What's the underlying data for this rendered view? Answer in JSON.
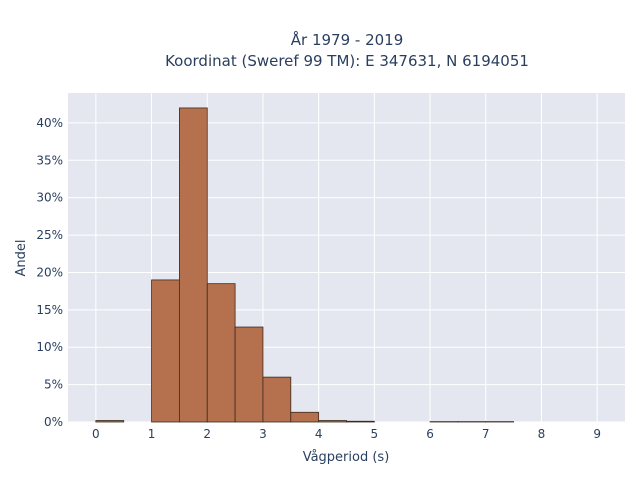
{
  "chart_data": {
    "type": "bar",
    "title_lines": [
      "År 1979 - 2019",
      "Koordinat (Sweref 99 TM): E 347631, N 6194051"
    ],
    "xlabel": "Vågperiod (s)",
    "ylabel": "Andel",
    "bin_width": 0.5,
    "bins": [
      {
        "x0": 0.0,
        "value": 0.002
      },
      {
        "x0": 0.5,
        "value": 0.0
      },
      {
        "x0": 1.0,
        "value": 0.19
      },
      {
        "x0": 1.5,
        "value": 0.42
      },
      {
        "x0": 2.0,
        "value": 0.185
      },
      {
        "x0": 2.5,
        "value": 0.127
      },
      {
        "x0": 3.0,
        "value": 0.06
      },
      {
        "x0": 3.5,
        "value": 0.013
      },
      {
        "x0": 4.0,
        "value": 0.002
      },
      {
        "x0": 4.5,
        "value": 0.001
      },
      {
        "x0": 6.0,
        "value": 0.0005
      },
      {
        "x0": 6.5,
        "value": 0.0005
      },
      {
        "x0": 7.0,
        "value": 0.0005
      }
    ],
    "xlim": [
      -0.5,
      9.5
    ],
    "ylim": [
      0,
      0.44
    ],
    "x_ticks": [
      0,
      1,
      2,
      3,
      4,
      5,
      6,
      7,
      8,
      9
    ],
    "y_ticks": [
      0,
      0.05,
      0.1,
      0.15,
      0.2,
      0.25,
      0.3,
      0.35,
      0.4
    ],
    "y_tick_labels": [
      "0%",
      "5%",
      "10%",
      "15%",
      "20%",
      "25%",
      "30%",
      "35%",
      "40%"
    ],
    "grid": true,
    "colors": {
      "bar_fill": "#b5714e",
      "bar_stroke": "#3d2a1f",
      "plot_bg": "#e5e7f0",
      "grid": "#ffffff"
    }
  }
}
